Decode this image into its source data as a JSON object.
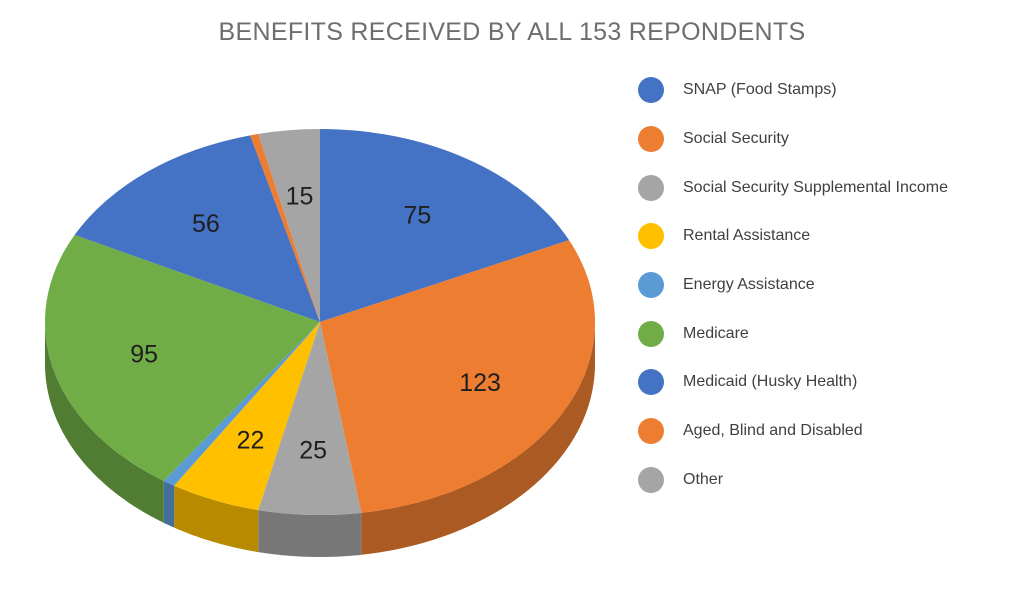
{
  "chart_data": {
    "type": "pie",
    "title": "BENEFITS RECEIVED BY ALL 153 REPONDENTS",
    "legend_position": "right",
    "slices": [
      {
        "label": "SNAP (Food Stamps)",
        "value": 75,
        "show_label": true,
        "color": "#4472C4"
      },
      {
        "label": "Social Security",
        "value": 123,
        "show_label": true,
        "color": "#ED7D31"
      },
      {
        "label": "Social Security Supplemental Income",
        "value": 25,
        "show_label": true,
        "color": "#A5A5A5"
      },
      {
        "label": "Rental Assistance",
        "value": 22,
        "show_label": true,
        "color": "#FFC000"
      },
      {
        "label": "Energy Assistance",
        "value": 3,
        "show_label": false,
        "color": "#5B9BD5"
      },
      {
        "label": "Medicare",
        "value": 95,
        "show_label": true,
        "color": "#70AD47"
      },
      {
        "label": "Medicaid (Husky Health)",
        "value": 56,
        "show_label": true,
        "color": "#4472C4"
      },
      {
        "label": "Aged, Blind and Disabled",
        "value": 2,
        "show_label": false,
        "color": "#ED7D31"
      },
      {
        "label": "Other",
        "value": 15,
        "show_label": true,
        "color": "#A5A5A5"
      }
    ]
  }
}
